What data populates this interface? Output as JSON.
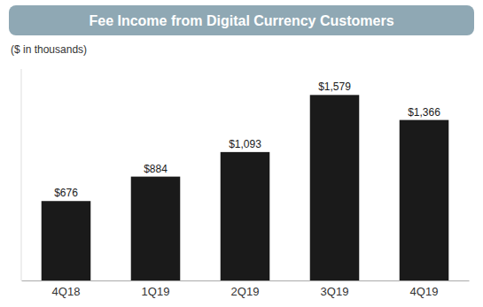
{
  "chart_data": {
    "type": "bar",
    "title": "Fee Income from Digital Currency Customers",
    "subtitle": "($ in thousands)",
    "categories": [
      "4Q18",
      "1Q19",
      "2Q19",
      "3Q19",
      "4Q19"
    ],
    "values": [
      676,
      884,
      1093,
      1579,
      1366
    ],
    "value_labels": [
      "$676",
      "$884",
      "$1,093",
      "$1,579",
      "$1,366"
    ],
    "color": "#1a1a1a",
    "ylim": [
      0,
      1800
    ],
    "data_labels": true,
    "tick_labels": "x"
  }
}
